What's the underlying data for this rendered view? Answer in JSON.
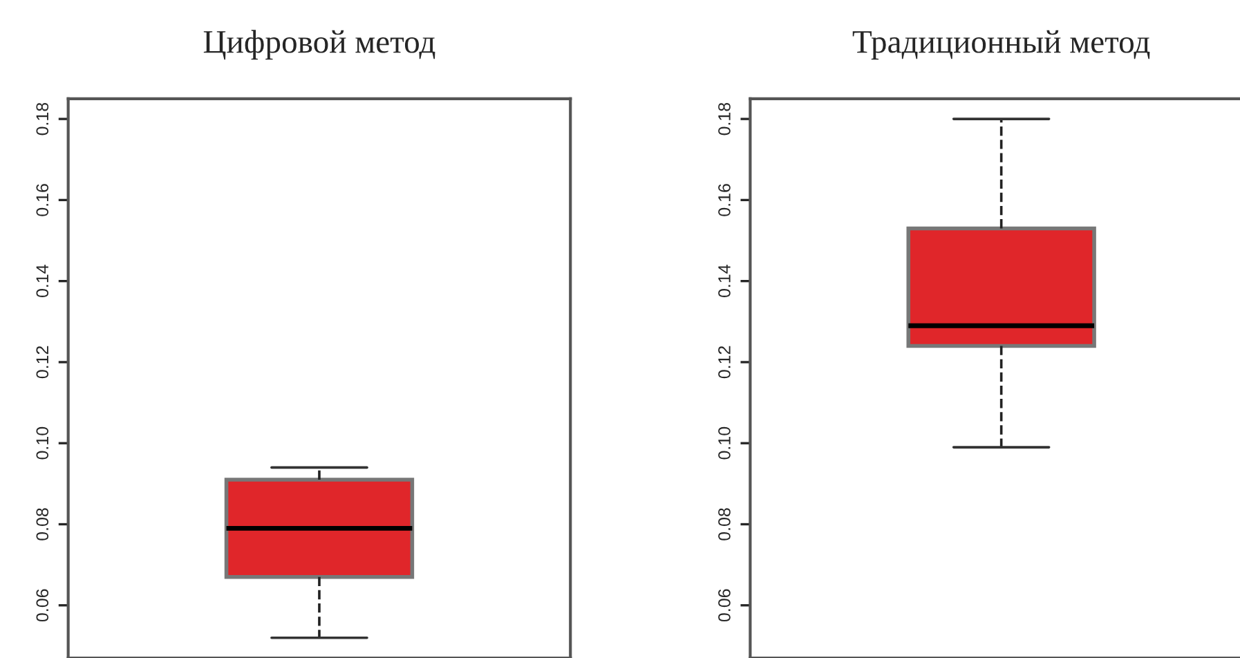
{
  "chart_data": [
    {
      "type": "box",
      "title": "Цифровой метод",
      "categories": [
        null
      ],
      "color": "#e0262a",
      "tick_labels": "y",
      "boxes": [
        {
          "low": 0.052,
          "q1": 0.067,
          "median": 0.079,
          "q3": 0.091,
          "high": 0.094
        }
      ],
      "ylim": [
        0.047,
        0.185
      ],
      "yticks": [
        0.06,
        0.08,
        {
          "value": 0.1,
          "label": "0.10"
        },
        0.12,
        0.14,
        0.16,
        0.18
      ],
      "grid": false
    },
    {
      "type": "box",
      "title": "Традиционный метод",
      "categories": [
        null
      ],
      "color": "#e0262a",
      "tick_labels": "y",
      "boxes": [
        {
          "low": 0.099,
          "q1": 0.124,
          "median": 0.129,
          "q3": 0.153,
          "high": 0.18
        }
      ],
      "ylim": [
        0.047,
        0.185
      ],
      "yticks": [
        0.06,
        0.08,
        {
          "value": 0.1,
          "label": "0.10"
        },
        0.12,
        0.14,
        0.16,
        0.18
      ],
      "grid": false
    }
  ]
}
